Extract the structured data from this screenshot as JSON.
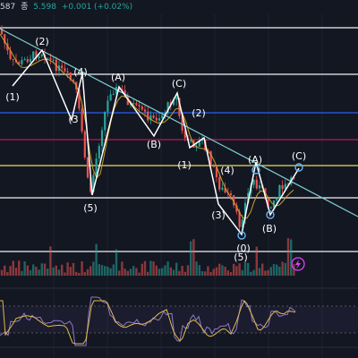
{
  "header": {
    "last_price_fragment": "587",
    "close_label": "종",
    "close_value": "5.598",
    "change": "+0.001 (+0.02%)"
  },
  "colors": {
    "background": "#131722",
    "candle_up": "#26a69a",
    "candle_down": "#ef5350",
    "wave_line": "#ffffff",
    "trendline": "#7fd1d6",
    "ma_line": "#c9a227",
    "rsi_line": "#8e7cc3",
    "rsi_ma": "#e0b84a",
    "hline_white": "#ffffff",
    "hline_blue": "#2962ff",
    "hline_magenta": "#c2185b",
    "hline_yellow": "#f5e663",
    "lightning_icon": "#e040fb"
  },
  "icons": {
    "alert": "lightning-icon"
  },
  "chart_data": {
    "type": "candlestick",
    "wave_labels": [
      "(1)",
      "(2)",
      "(3",
      "(4)",
      "(5)",
      "(A)",
      "(B)",
      "(C)",
      "(2)",
      "(1)",
      "(3)",
      "(4)",
      "(0)",
      "(5)",
      "(A)",
      "(B)",
      "(C)"
    ],
    "horizontal_levels": [
      {
        "color": "white",
        "style": "solid"
      },
      {
        "color": "white",
        "style": "solid"
      },
      {
        "color": "blue",
        "style": "solid"
      },
      {
        "color": "magenta",
        "style": "solid"
      },
      {
        "color": "yellow",
        "style": "solid"
      },
      {
        "color": "white",
        "style": "solid"
      },
      {
        "color": "white",
        "style": "solid"
      }
    ],
    "grid": true,
    "legend": "none",
    "indicators": [
      "moving-average",
      "volume",
      "rsi"
    ]
  }
}
